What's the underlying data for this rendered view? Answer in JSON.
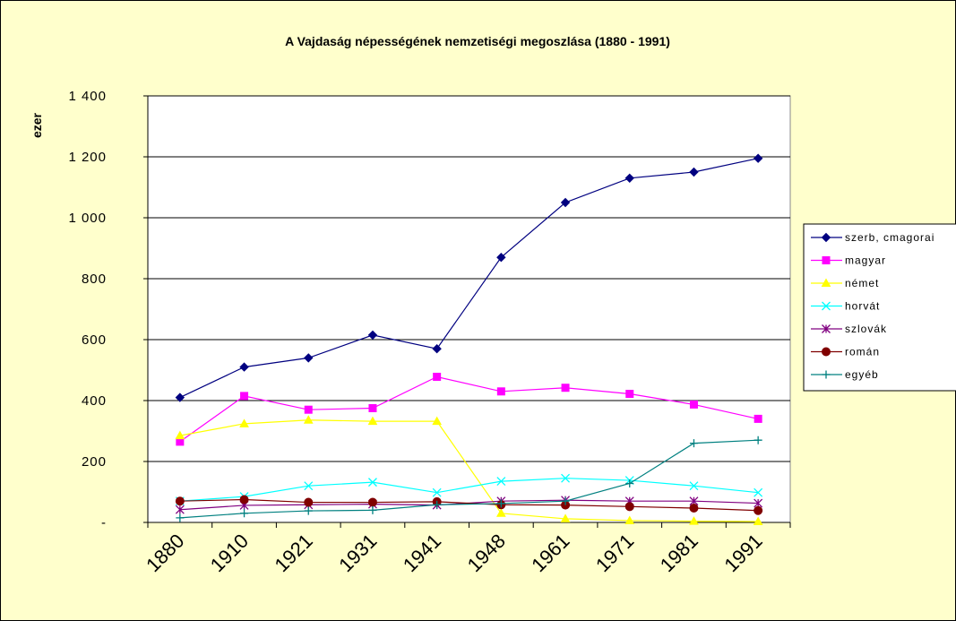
{
  "chart_data": {
    "type": "line",
    "title": "A Vajdaság népességének nemzetiségi megoszlása  (1880 - 1991)",
    "y_label": "ezer",
    "categories": [
      "1880",
      "1910",
      "1921",
      "1931",
      "1941",
      "1948",
      "1961",
      "1971",
      "1981",
      "1991"
    ],
    "ylim": [
      0,
      1400
    ],
    "yticks": [
      {
        "value": 0,
        "label": "-"
      },
      200,
      400,
      600,
      800,
      {
        "value": 1000,
        "label": "1 000"
      },
      {
        "value": 1200,
        "label": "1 200"
      },
      {
        "value": 1400,
        "label": "1 400"
      }
    ],
    "grid": true,
    "legend": "right",
    "series": [
      {
        "name": "szerb, cmagorai",
        "color": "#000080",
        "marker": "diamond",
        "values": [
          410,
          510,
          540,
          615,
          570,
          870,
          1050,
          1130,
          1150,
          1195
        ]
      },
      {
        "name": "magyar",
        "color": "#ff00ff",
        "marker": "square",
        "values": [
          265,
          415,
          370,
          375,
          478,
          430,
          442,
          422,
          387,
          340
        ]
      },
      {
        "name": "német",
        "color": "#ffff00",
        "marker": "triangle",
        "values": [
          285,
          324,
          336,
          332,
          332,
          30,
          12,
          6,
          4,
          3
        ]
      },
      {
        "name": "horvát",
        "color": "#00ffff",
        "marker": "x",
        "values": [
          70,
          85,
          120,
          132,
          98,
          135,
          145,
          138,
          120,
          98
        ]
      },
      {
        "name": "szlovák",
        "color": "#800080",
        "marker": "star",
        "values": [
          42,
          56,
          58,
          60,
          57,
          70,
          73,
          70,
          70,
          63
        ]
      },
      {
        "name": "román",
        "color": "#800000",
        "marker": "circle",
        "values": [
          70,
          75,
          66,
          66,
          68,
          58,
          57,
          52,
          47,
          39
        ]
      },
      {
        "name": "egyéb",
        "color": "#008080",
        "marker": "plus",
        "values": [
          15,
          30,
          38,
          40,
          58,
          62,
          70,
          128,
          260,
          270
        ]
      }
    ]
  }
}
